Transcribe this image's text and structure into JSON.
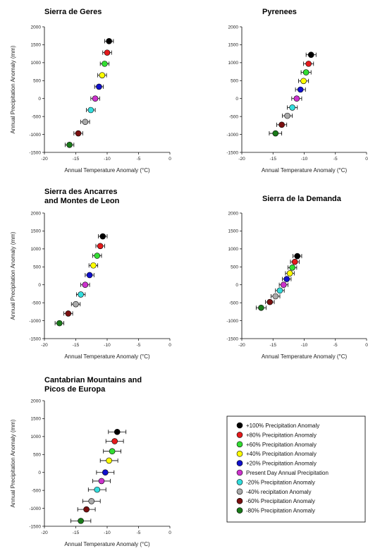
{
  "legend": [
    {
      "label": "+100% Precipitation Anomaly",
      "color": "#000000"
    },
    {
      "label": "+80% Precipitation Anomaly",
      "color": "#e41a1c"
    },
    {
      "label": "+60% Precipitation Anomaly",
      "color": "#33dd33"
    },
    {
      "label": "+40% Precipitation Anomaly",
      "color": "#ffff00"
    },
    {
      "label": "+20% Precipitation Anomaly",
      "color": "#1010cc"
    },
    {
      "label": "Present Day Annual Precipitation",
      "color": "#cc33cc"
    },
    {
      "label": "-20% Precipitation Anomaly",
      "color": "#33dddd"
    },
    {
      "label": "-40% recipitation Anomaly",
      "color": "#aaaaaa"
    },
    {
      "label": "-60% Precipitation Anomaly",
      "color": "#7a1010"
    },
    {
      "label": "-80% Precipitation Anomaly",
      "color": "#1a7a1a"
    }
  ],
  "chart_data": [
    {
      "type": "scatter",
      "title": [
        "Sierra de Geres"
      ],
      "xlabel": "Annual Temperature Anomaly (°C)",
      "ylabel": "Annual Precipitation Anomaly (mm)",
      "xlim": [
        -20,
        0
      ],
      "ylim": [
        -1500,
        2000
      ],
      "xticks": [
        -20,
        -15,
        -10,
        -5,
        0
      ],
      "yticks": [
        -1500,
        -1000,
        -500,
        0,
        500,
        1000,
        1500,
        2000
      ],
      "points": [
        {
          "x": -9.7,
          "y": 1600,
          "xerr": 0.7
        },
        {
          "x": -10.0,
          "y": 1280,
          "xerr": 0.7
        },
        {
          "x": -10.4,
          "y": 970,
          "xerr": 0.7
        },
        {
          "x": -10.8,
          "y": 650,
          "xerr": 0.7
        },
        {
          "x": -11.3,
          "y": 330,
          "xerr": 0.7
        },
        {
          "x": -11.9,
          "y": 0,
          "xerr": 0.7
        },
        {
          "x": -12.6,
          "y": -320,
          "xerr": 0.7
        },
        {
          "x": -13.5,
          "y": -650,
          "xerr": 0.7
        },
        {
          "x": -14.6,
          "y": -970,
          "xerr": 0.7
        },
        {
          "x": -16.0,
          "y": -1290,
          "xerr": 0.7
        }
      ]
    },
    {
      "type": "scatter",
      "title": [
        "Pyrenees"
      ],
      "xlabel": "Annual Temperature Anomaly (°C)",
      "ylabel": "",
      "xlim": [
        -20,
        0
      ],
      "ylim": [
        -1500,
        2000
      ],
      "xticks": [
        -20,
        -15,
        -10,
        -5,
        0
      ],
      "yticks": [
        -1500,
        -1000,
        -500,
        0,
        500,
        1000,
        1500,
        2000
      ],
      "points": [
        {
          "x": -8.9,
          "y": 1220,
          "xerr": 0.8
        },
        {
          "x": -9.3,
          "y": 970,
          "xerr": 0.8
        },
        {
          "x": -9.7,
          "y": 730,
          "xerr": 0.8
        },
        {
          "x": -10.1,
          "y": 490,
          "xerr": 0.8
        },
        {
          "x": -10.6,
          "y": 250,
          "xerr": 0.8
        },
        {
          "x": -11.2,
          "y": 0,
          "xerr": 0.8
        },
        {
          "x": -11.9,
          "y": -250,
          "xerr": 0.8
        },
        {
          "x": -12.7,
          "y": -480,
          "xerr": 0.8
        },
        {
          "x": -13.6,
          "y": -730,
          "xerr": 0.8
        },
        {
          "x": -14.6,
          "y": -970,
          "xerr": 1.0
        }
      ]
    },
    {
      "type": "scatter",
      "title": [
        "Sierra des Ancarres",
        "and Montes de Leon"
      ],
      "xlabel": "Annual Temperature Anomaly (°C)",
      "ylabel": "Annual Precipitation Anomaly (mm)",
      "xlim": [
        -20,
        0
      ],
      "ylim": [
        -1500,
        2000
      ],
      "xticks": [
        -20,
        -15,
        -10,
        -5,
        0
      ],
      "yticks": [
        -1500,
        -1000,
        -500,
        0,
        500,
        1000,
        1500,
        2000
      ],
      "points": [
        {
          "x": -10.7,
          "y": 1350,
          "xerr": 0.7
        },
        {
          "x": -11.1,
          "y": 1080,
          "xerr": 0.7
        },
        {
          "x": -11.6,
          "y": 810,
          "xerr": 0.7
        },
        {
          "x": -12.2,
          "y": 540,
          "xerr": 0.7
        },
        {
          "x": -12.8,
          "y": 270,
          "xerr": 0.7
        },
        {
          "x": -13.5,
          "y": 0,
          "xerr": 0.7
        },
        {
          "x": -14.2,
          "y": -270,
          "xerr": 0.7
        },
        {
          "x": -15.0,
          "y": -540,
          "xerr": 0.7
        },
        {
          "x": -16.2,
          "y": -800,
          "xerr": 0.7
        },
        {
          "x": -17.6,
          "y": -1070,
          "xerr": 0.7
        }
      ]
    },
    {
      "type": "scatter",
      "title": [
        "Sierra de la Demanda"
      ],
      "xlabel": "Annual Temperature Anomaly (°C)",
      "ylabel": "",
      "xlim": [
        -20,
        0
      ],
      "ylim": [
        -1500,
        2000
      ],
      "xticks": [
        -20,
        -15,
        -10,
        -5,
        0
      ],
      "yticks": [
        -1500,
        -1000,
        -500,
        0,
        500,
        1000,
        1500,
        2000
      ],
      "points": [
        {
          "x": -11.1,
          "y": 800,
          "xerr": 0.7
        },
        {
          "x": -11.5,
          "y": 640,
          "xerr": 0.7
        },
        {
          "x": -11.9,
          "y": 480,
          "xerr": 0.7
        },
        {
          "x": -12.3,
          "y": 320,
          "xerr": 0.7
        },
        {
          "x": -12.8,
          "y": 160,
          "xerr": 0.7
        },
        {
          "x": -13.3,
          "y": 0,
          "xerr": 0.7
        },
        {
          "x": -13.9,
          "y": -160,
          "xerr": 0.7
        },
        {
          "x": -14.6,
          "y": -320,
          "xerr": 0.7
        },
        {
          "x": -15.5,
          "y": -480,
          "xerr": 0.7
        },
        {
          "x": -16.9,
          "y": -640,
          "xerr": 0.8
        }
      ]
    },
    {
      "type": "scatter",
      "title": [
        "Cantabrian Mountains and",
        "Picos de Europa"
      ],
      "xlabel": "Annual Temperature Anomaly (°C)",
      "ylabel": "Annual Precipitation Anomaly (mm)",
      "xlim": [
        -20,
        0
      ],
      "ylim": [
        -1500,
        2000
      ],
      "xticks": [
        -20,
        -15,
        -10,
        -5,
        0
      ],
      "yticks": [
        -1500,
        -1000,
        -500,
        0,
        500,
        1000,
        1500,
        2000
      ],
      "points": [
        {
          "x": -8.4,
          "y": 1130,
          "xerr": 1.4
        },
        {
          "x": -8.8,
          "y": 870,
          "xerr": 1.4
        },
        {
          "x": -9.2,
          "y": 590,
          "xerr": 1.4
        },
        {
          "x": -9.7,
          "y": 330,
          "xerr": 1.4
        },
        {
          "x": -10.3,
          "y": 0,
          "xerr": 1.4
        },
        {
          "x": -10.9,
          "y": -240,
          "xerr": 1.4
        },
        {
          "x": -11.6,
          "y": -480,
          "xerr": 1.4
        },
        {
          "x": -12.5,
          "y": -800,
          "xerr": 1.4
        },
        {
          "x": -13.3,
          "y": -1030,
          "xerr": 1.4
        },
        {
          "x": -14.2,
          "y": -1350,
          "xerr": 1.6
        }
      ]
    }
  ]
}
